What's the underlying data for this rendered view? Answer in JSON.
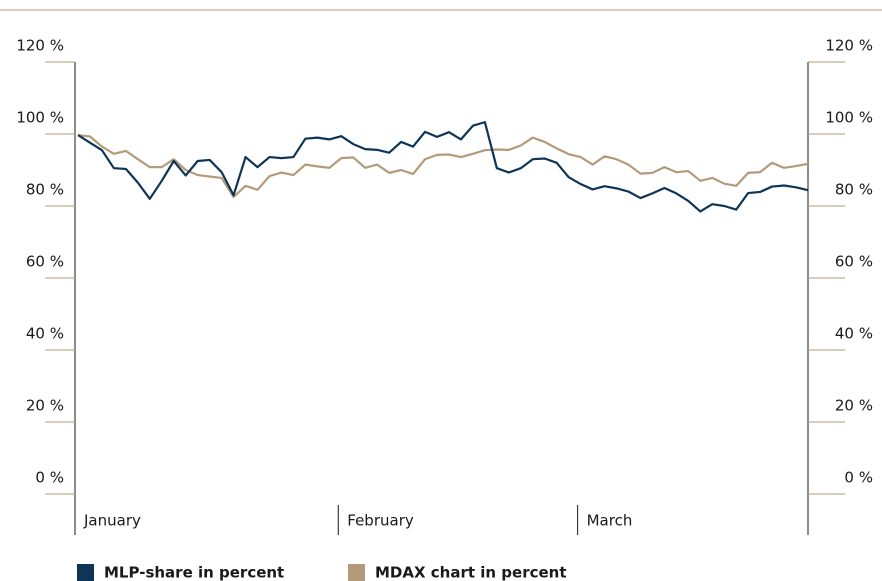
{
  "chart_data": {
    "type": "line",
    "x": [
      0,
      1,
      2,
      3,
      4,
      5,
      6,
      7,
      8,
      9,
      10,
      11,
      12,
      13,
      14,
      15,
      16,
      17,
      18,
      19,
      20,
      21,
      22,
      23,
      24,
      25,
      26,
      27,
      28,
      29,
      30,
      31,
      32,
      33,
      34,
      35,
      36,
      37,
      38,
      39,
      40,
      41,
      42,
      43,
      44,
      45,
      46,
      47,
      48,
      49,
      50,
      51,
      52,
      53,
      54,
      55,
      56,
      57,
      58,
      59,
      60,
      61
    ],
    "xlim": [
      0,
      61
    ],
    "xticks": [
      {
        "value": 0,
        "label": "January"
      },
      {
        "value": 22,
        "label": "February"
      },
      {
        "value": 42,
        "label": "March"
      }
    ],
    "ylim": [
      0,
      120
    ],
    "yticks": [
      {
        "value": 0,
        "label": "0 %"
      },
      {
        "value": 20,
        "label": "20 %"
      },
      {
        "value": 40,
        "label": "40 %"
      },
      {
        "value": 60,
        "label": "60 %"
      },
      {
        "value": 80,
        "label": "80 %"
      },
      {
        "value": 100,
        "label": "100 %"
      },
      {
        "value": 120,
        "label": "120 %"
      }
    ],
    "y2lim": [
      0,
      120
    ],
    "y2ticks": [
      {
        "value": 0,
        "label": "0 %"
      },
      {
        "value": 20,
        "label": "20 %"
      },
      {
        "value": 40,
        "label": "40 %"
      },
      {
        "value": 60,
        "label": "60 %"
      },
      {
        "value": 80,
        "label": "80 %"
      },
      {
        "value": 100,
        "label": "100 %"
      },
      {
        "value": 120,
        "label": "120 %"
      }
    ],
    "series": [
      {
        "name": "MLP-share in percent",
        "color": "#0e3557",
        "values": [
          99.7,
          97.6,
          95.5,
          90.5,
          90.3,
          86.5,
          82,
          87,
          92.5,
          88.5,
          92.5,
          92.8,
          89.4,
          83,
          93.6,
          90.8,
          93.6,
          93.3,
          93.6,
          98.7,
          99,
          98.5,
          99.4,
          97.2,
          95.8,
          95.6,
          94.8,
          97.8,
          96.5,
          100.6,
          99.2,
          100.5,
          98.5,
          102.3,
          103.3,
          90.5,
          89.3,
          90.5,
          93,
          93.2,
          92,
          88,
          86.1,
          84.6,
          85.5,
          84.9,
          84,
          82.2,
          83.5,
          85,
          83.5,
          81.4,
          78.5,
          80.5,
          80,
          79,
          83.6,
          83.9,
          85.4,
          85.7,
          85.2,
          84.4
        ]
      },
      {
        "name": "MDAX chart in percent",
        "color": "#b49a7a",
        "values": [
          99.7,
          99.3,
          96.5,
          94.5,
          95.3,
          93,
          90.8,
          90.8,
          93,
          90,
          88.6,
          88.2,
          87.8,
          82.5,
          85.6,
          84.5,
          88.3,
          89.3,
          88.6,
          91.5,
          91,
          90.6,
          93.3,
          93.5,
          90.6,
          91.5,
          89.2,
          90,
          88.9,
          93,
          94.2,
          94.3,
          93.6,
          94.5,
          95.5,
          95.7,
          95.6,
          96.8,
          99,
          97.8,
          96,
          94.4,
          93.6,
          91.5,
          93.8,
          93,
          91.5,
          89,
          89.2,
          90.8,
          89.4,
          89.7,
          87,
          87.8,
          86.2,
          85.6,
          89.2,
          89.4,
          92,
          90.6,
          91.1,
          91.7
        ]
      }
    ]
  }
}
